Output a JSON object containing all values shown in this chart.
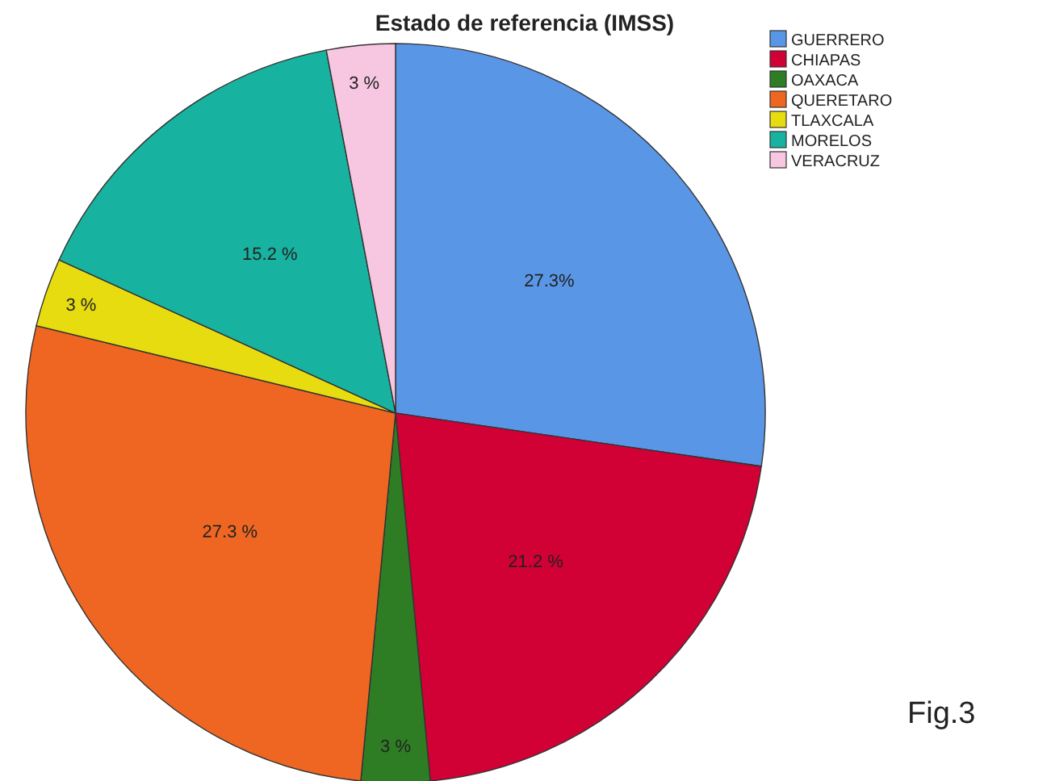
{
  "chart_data": {
    "type": "pie",
    "title": "Estado de referencia (IMSS)",
    "categories": [
      "GUERRERO",
      "CHIAPAS",
      "OAXACA",
      "QUERETARO",
      "TLAXCALA",
      "MORELOS",
      "VERACRUZ"
    ],
    "values": [
      27.3,
      21.2,
      3,
      27.3,
      3,
      15.2,
      3
    ],
    "colors": [
      "#5a96e6",
      "#d10035",
      "#2e7d25",
      "#ee6622",
      "#e6dc10",
      "#17b3a0",
      "#f7c6e0"
    ],
    "value_labels": [
      "27.3%",
      "21.2 %",
      "3 %",
      "27.3 %",
      "3 %",
      "15.2 %",
      "3 %"
    ],
    "legend": "top right",
    "annotations": [
      "Fig.3"
    ]
  }
}
